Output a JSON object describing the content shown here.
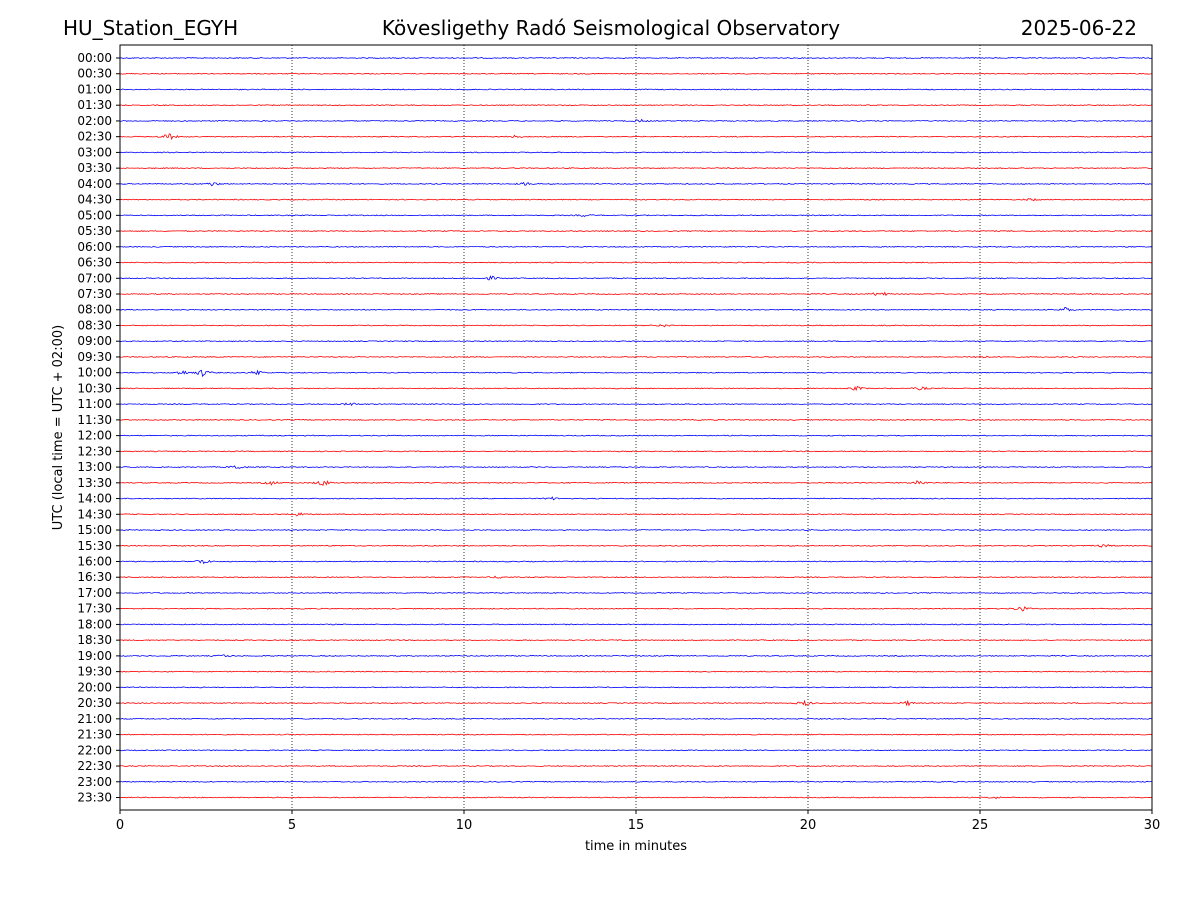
{
  "header": {
    "station": "HU_Station_EGYH",
    "observatory": "Kövesligethy Radó Seismological Observatory",
    "date": "2025-06-22"
  },
  "chart_data": {
    "type": "line",
    "xlabel": "time in minutes",
    "ylabel": "UTC (local time = UTC + 02:00)",
    "xlim": [
      0,
      30
    ],
    "xticks": [
      0,
      5,
      10,
      15,
      20,
      25,
      30
    ],
    "vertical_gridlines": [
      5,
      10,
      15,
      20,
      25
    ],
    "grid_style": "dotted",
    "trace_minutes": 30,
    "series_colors": [
      "#0000ff",
      "#ff0000"
    ],
    "rows": [
      "00:00",
      "00:30",
      "01:00",
      "01:30",
      "02:00",
      "02:30",
      "03:00",
      "03:30",
      "04:00",
      "04:30",
      "05:00",
      "05:30",
      "06:00",
      "06:30",
      "07:00",
      "07:30",
      "08:00",
      "08:30",
      "09:00",
      "09:30",
      "10:00",
      "10:30",
      "11:00",
      "11:30",
      "12:00",
      "12:30",
      "13:00",
      "13:30",
      "14:00",
      "14:30",
      "15:00",
      "15:30",
      "16:00",
      "16:30",
      "17:00",
      "17:30",
      "18:00",
      "18:30",
      "19:00",
      "19:30",
      "20:00",
      "20:30",
      "21:00",
      "21:30",
      "22:00",
      "22:30",
      "23:00",
      "23:30"
    ],
    "events": [
      {
        "row": "02:00",
        "x": 15.1,
        "amp": 0.4
      },
      {
        "row": "02:30",
        "x": 1.4,
        "amp": 0.9
      },
      {
        "row": "02:30",
        "x": 11.5,
        "amp": 0.3
      },
      {
        "row": "04:00",
        "x": 2.7,
        "amp": 0.5
      },
      {
        "row": "04:00",
        "x": 11.8,
        "amp": 0.4
      },
      {
        "row": "04:30",
        "x": 26.5,
        "amp": 0.3
      },
      {
        "row": "05:00",
        "x": 13.5,
        "amp": 0.3
      },
      {
        "row": "07:00",
        "x": 10.8,
        "amp": 0.5
      },
      {
        "row": "07:30",
        "x": 22.1,
        "amp": 0.8
      },
      {
        "row": "08:00",
        "x": 27.5,
        "amp": 0.6
      },
      {
        "row": "08:30",
        "x": 15.8,
        "amp": 0.3
      },
      {
        "row": "09:30",
        "x": 25.0,
        "amp": 0.4
      },
      {
        "row": "10:00",
        "x": 1.8,
        "amp": 0.6
      },
      {
        "row": "10:00",
        "x": 2.4,
        "amp": 0.9
      },
      {
        "row": "10:00",
        "x": 4.0,
        "amp": 0.6
      },
      {
        "row": "10:30",
        "x": 21.4,
        "amp": 0.5
      },
      {
        "row": "10:30",
        "x": 23.3,
        "amp": 0.4
      },
      {
        "row": "11:00",
        "x": 6.7,
        "amp": 0.4
      },
      {
        "row": "13:00",
        "x": 3.4,
        "amp": 0.6
      },
      {
        "row": "13:30",
        "x": 4.4,
        "amp": 0.5
      },
      {
        "row": "13:30",
        "x": 5.9,
        "amp": 0.8
      },
      {
        "row": "13:30",
        "x": 23.2,
        "amp": 0.7
      },
      {
        "row": "14:00",
        "x": 12.6,
        "amp": 0.3
      },
      {
        "row": "14:30",
        "x": 5.2,
        "amp": 0.5
      },
      {
        "row": "15:30",
        "x": 28.6,
        "amp": 0.4
      },
      {
        "row": "16:00",
        "x": 2.4,
        "amp": 0.7
      },
      {
        "row": "16:30",
        "x": 11.0,
        "amp": 0.3
      },
      {
        "row": "17:30",
        "x": 26.2,
        "amp": 0.7
      },
      {
        "row": "19:00",
        "x": 3.0,
        "amp": 0.3
      },
      {
        "row": "20:30",
        "x": 19.9,
        "amp": 0.6
      },
      {
        "row": "20:30",
        "x": 22.9,
        "amp": 0.5
      },
      {
        "row": "23:30",
        "x": 25.4,
        "amp": 0.3
      }
    ]
  }
}
